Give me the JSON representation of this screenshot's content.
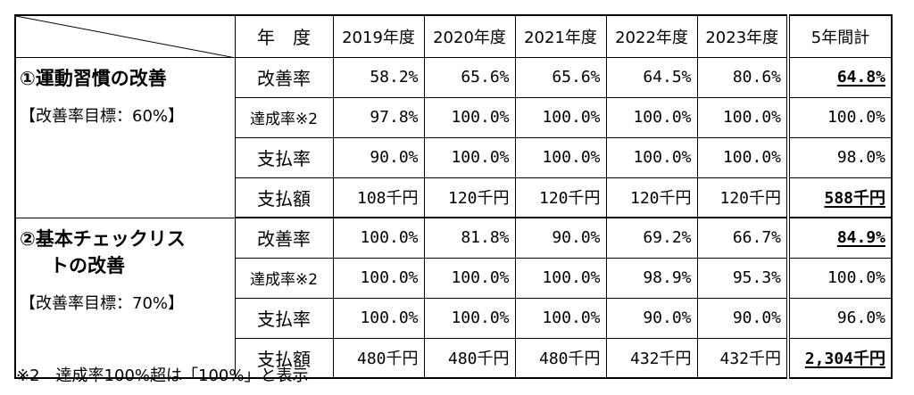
{
  "header": {
    "year_label": "年　度",
    "years": [
      "2019年度",
      "2020年度",
      "2021年度",
      "2022年度",
      "2023年度"
    ],
    "total_label": "5年間計"
  },
  "groups": [
    {
      "title": "①運動習慣の改善",
      "title_line2": "",
      "target": "【改善率目標：60%】",
      "rows": [
        {
          "label": "改善率",
          "values": [
            "58.2%",
            "65.6%",
            "65.6%",
            "64.5%",
            "80.6%"
          ],
          "total": "64.8%",
          "total_emphasis": true
        },
        {
          "label": "達成率※2",
          "values": [
            "97.8%",
            "100.0%",
            "100.0%",
            "100.0%",
            "100.0%"
          ],
          "total": "100.0%",
          "total_emphasis": false
        },
        {
          "label": "支払率",
          "values": [
            "90.0%",
            "100.0%",
            "100.0%",
            "100.0%",
            "100.0%"
          ],
          "total": "98.0%",
          "total_emphasis": false
        },
        {
          "label": "支払額",
          "values": [
            "108千円",
            "120千円",
            "120千円",
            "120千円",
            "120千円"
          ],
          "total": "588千円",
          "total_emphasis": true
        }
      ]
    },
    {
      "title": "②基本チェックリス",
      "title_line2": "トの改善",
      "target": "【改善率目標：70%】",
      "rows": [
        {
          "label": "改善率",
          "values": [
            "100.0%",
            "81.8%",
            "90.0%",
            "69.2%",
            "66.7%"
          ],
          "total": "84.9%",
          "total_emphasis": true
        },
        {
          "label": "達成率※2",
          "values": [
            "100.0%",
            "100.0%",
            "100.0%",
            "98.9%",
            "95.3%"
          ],
          "total": "100.0%",
          "total_emphasis": false
        },
        {
          "label": "支払率",
          "values": [
            "100.0%",
            "100.0%",
            "100.0%",
            "90.0%",
            "90.0%"
          ],
          "total": "96.0%",
          "total_emphasis": false
        },
        {
          "label": "支払額",
          "values": [
            "480千円",
            "480千円",
            "480千円",
            "432千円",
            "432千円"
          ],
          "total": "2,304千円",
          "total_emphasis": true
        }
      ]
    }
  ],
  "footnote": "※2　達成率100%超は「100%」と表示"
}
